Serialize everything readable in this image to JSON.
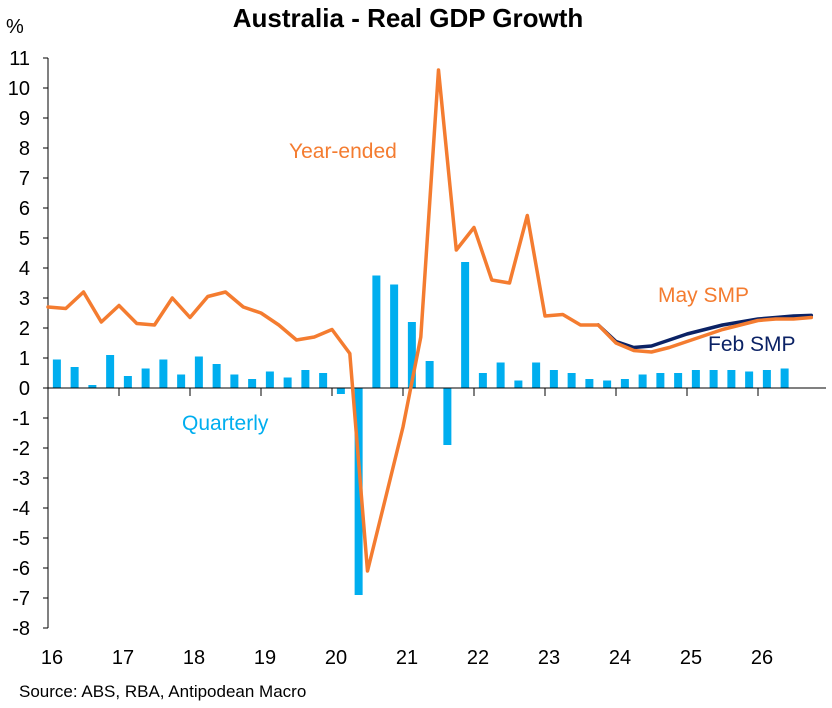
{
  "chart_data": {
    "type": "bar",
    "title": "Australia - Real GDP Growth",
    "y_unit": "%",
    "ylim": [
      -8,
      11
    ],
    "y_ticks": [
      11,
      10,
      9,
      8,
      7,
      6,
      5,
      4,
      3,
      2,
      1,
      0,
      -1,
      -2,
      -3,
      -4,
      -5,
      -6,
      -7,
      -8
    ],
    "x_tick_labels": [
      "16",
      "17",
      "18",
      "19",
      "20",
      "21",
      "22",
      "23",
      "24",
      "25",
      "26"
    ],
    "grid": false,
    "source": "Source: ABS, RBA, Antipodean Macro",
    "annotations": {
      "year_ended": "Year-ended",
      "quarterly": "Quarterly",
      "may_smp": "May SMP",
      "feb_smp": "Feb SMP"
    },
    "colors": {
      "quarterly": "#00AEEF",
      "may_smp": "#F47C30",
      "feb_smp": "#0B2265",
      "axis": "#000000"
    },
    "x_start": 2016.0,
    "quarter_step": 0.25,
    "series": [
      {
        "name": "Quarterly",
        "kind": "bar",
        "values": [
          0.95,
          0.7,
          0.1,
          1.1,
          0.4,
          0.65,
          0.95,
          0.45,
          1.05,
          0.8,
          0.45,
          0.3,
          0.55,
          0.35,
          0.6,
          0.5,
          -0.2,
          -6.9,
          3.75,
          3.45,
          2.2,
          0.9,
          -1.9,
          4.2,
          0.5,
          0.85,
          0.25,
          0.85,
          0.6,
          0.5,
          0.3,
          0.25,
          0.3,
          0.45,
          0.5,
          0.5,
          0.6,
          0.6,
          0.6,
          0.55,
          0.6,
          0.65
        ]
      },
      {
        "name": "May SMP",
        "kind": "line",
        "values": [
          2.7,
          2.65,
          3.2,
          2.2,
          2.75,
          2.15,
          2.1,
          3.0,
          2.35,
          3.05,
          3.2,
          2.7,
          2.5,
          2.1,
          1.6,
          1.7,
          1.95,
          1.15,
          -6.1,
          -3.7,
          -1.3,
          1.7,
          10.6,
          4.6,
          5.35,
          3.6,
          3.5,
          5.75,
          2.4,
          2.45,
          2.1,
          2.1,
          1.5,
          1.25,
          1.2,
          1.35,
          1.55,
          1.75,
          1.95,
          2.1,
          2.25,
          2.3,
          2.3,
          2.35
        ]
      },
      {
        "name": "Feb SMP",
        "kind": "line",
        "start_index": 31,
        "values": [
          2.1,
          1.55,
          1.35,
          1.4,
          1.6,
          1.8,
          1.95,
          2.1,
          2.2,
          2.3,
          2.35,
          2.4,
          2.42
        ]
      }
    ]
  }
}
